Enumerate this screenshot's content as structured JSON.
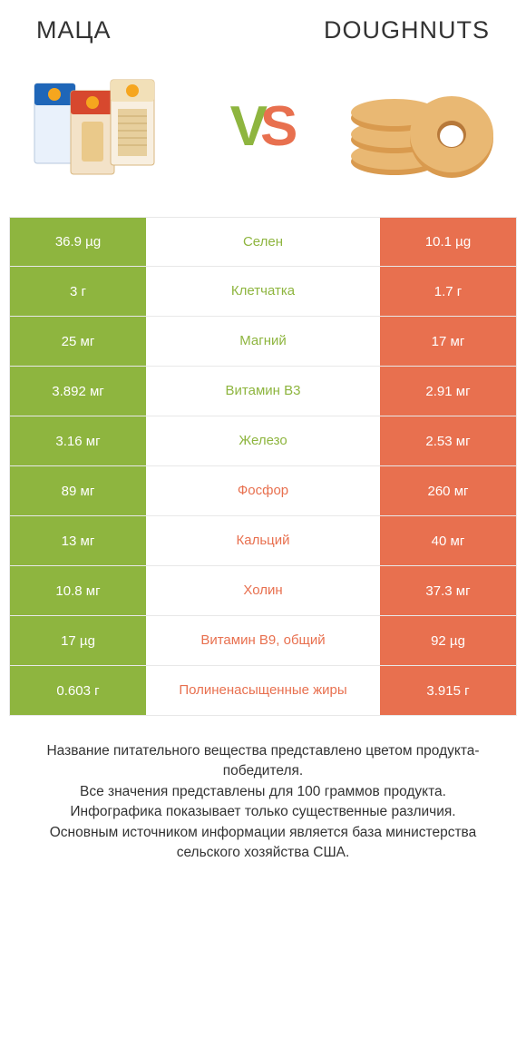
{
  "colors": {
    "left": "#8eb53f",
    "right": "#e8704f",
    "white": "#ffffff",
    "text": "#333333",
    "border": "#e8e8e8"
  },
  "header": {
    "left_title": "МАЦА",
    "right_title": "DOUGHNUTS",
    "vs_v": "V",
    "vs_s": "S"
  },
  "rows": [
    {
      "left": "36.9 µg",
      "label": "Селен",
      "right": "10.1 µg",
      "winner": "left"
    },
    {
      "left": "3 г",
      "label": "Клетчатка",
      "right": "1.7 г",
      "winner": "left"
    },
    {
      "left": "25 мг",
      "label": "Магний",
      "right": "17 мг",
      "winner": "left"
    },
    {
      "left": "3.892 мг",
      "label": "Витамин B3",
      "right": "2.91 мг",
      "winner": "left"
    },
    {
      "left": "3.16 мг",
      "label": "Железо",
      "right": "2.53 мг",
      "winner": "left"
    },
    {
      "left": "89 мг",
      "label": "Фосфор",
      "right": "260 мг",
      "winner": "right"
    },
    {
      "left": "13 мг",
      "label": "Кальций",
      "right": "40 мг",
      "winner": "right"
    },
    {
      "left": "10.8 мг",
      "label": "Холин",
      "right": "37.3 мг",
      "winner": "right"
    },
    {
      "left": "17 µg",
      "label": "Витамин B9, общий",
      "right": "92 µg",
      "winner": "right"
    },
    {
      "left": "0.603 г",
      "label": "Полиненасыщенные жиры",
      "right": "3.915 г",
      "winner": "right"
    }
  ],
  "footer": {
    "line1": "Название питательного вещества представлено цветом продукта-победителя.",
    "line2": "Все значения представлены для 100 граммов продукта.",
    "line3": "Инфографика показывает только существенные различия.",
    "line4": "Основным источником информации является база министерства сельского хозяйства США."
  }
}
